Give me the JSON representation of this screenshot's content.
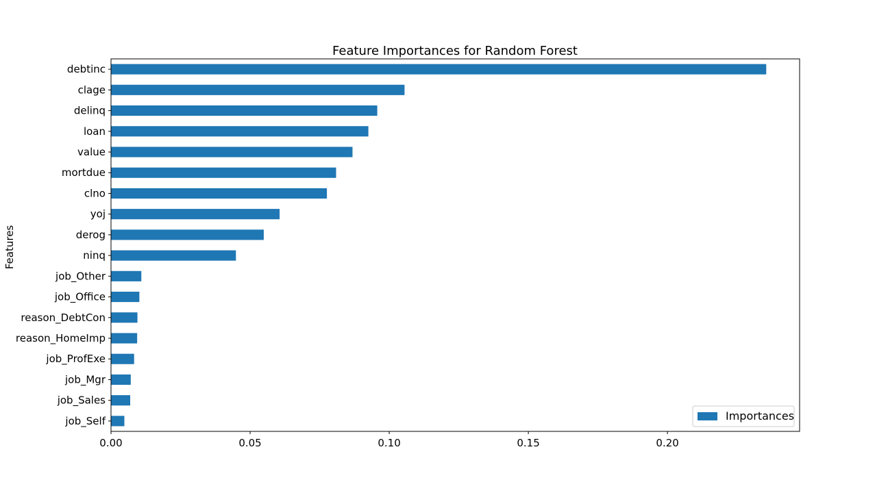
{
  "chart_data": {
    "type": "bar",
    "orientation": "horizontal",
    "title": "Feature Importances for Random Forest",
    "xlabel": "",
    "ylabel": "Features",
    "categories": [
      "debtinc",
      "clage",
      "delinq",
      "loan",
      "value",
      "mortdue",
      "clno",
      "yoj",
      "derog",
      "ninq",
      "job_Other",
      "job_Office",
      "reason_DebtCon",
      "reason_HomeImp",
      "job_ProfExe",
      "job_Mgr",
      "job_Sales",
      "job_Self"
    ],
    "series": [
      {
        "name": "Importances",
        "color": "#1f77b4",
        "values": [
          0.2355,
          0.1055,
          0.0957,
          0.0925,
          0.0868,
          0.0809,
          0.0776,
          0.0606,
          0.0549,
          0.0449,
          0.0109,
          0.0102,
          0.0095,
          0.0094,
          0.0083,
          0.0071,
          0.0069,
          0.0048
        ]
      }
    ],
    "xlim": [
      0,
      0.2475
    ],
    "xticks": [
      0.0,
      0.05,
      0.1,
      0.15,
      0.2
    ],
    "xtick_labels": [
      "0.00",
      "0.05",
      "0.10",
      "0.15",
      "0.20"
    ],
    "grid": false,
    "legend_position": "lower-right"
  }
}
